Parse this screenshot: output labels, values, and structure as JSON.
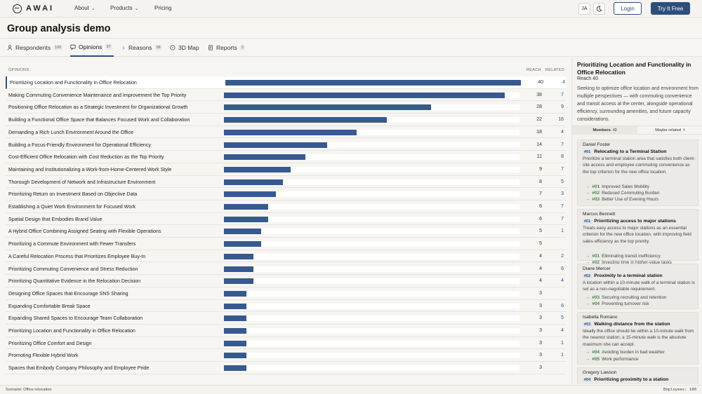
{
  "nav": {
    "brand": "AWAI",
    "about": "About",
    "products": "Products",
    "pricing": "Pricing",
    "lang": "JA",
    "login": "Login",
    "try": "Try It Free"
  },
  "page_title": "Group analysis demo",
  "tabs": [
    {
      "label": "Respondents",
      "count": "100"
    },
    {
      "label": "Opinions",
      "count": "97"
    },
    {
      "label": "Reasons",
      "count": "98"
    },
    {
      "label": "3D Map",
      "count": ""
    },
    {
      "label": "Reports",
      "count": "3"
    }
  ],
  "list_headers": {
    "opinions": "OPINIONS",
    "reach": "REACH",
    "related": "RELATED"
  },
  "opinions": [
    {
      "label": "Prioritizing Location and Functionality in Office Relocation",
      "reach": 40,
      "related": "4"
    },
    {
      "label": "Making Commuting Convenience Maintenance and Improvement the Top Priority",
      "reach": 38,
      "related": "7"
    },
    {
      "label": "Positioning Office Relocation as a Strategic Investment for Organizational Growth",
      "reach": 28,
      "related": "9"
    },
    {
      "label": "Building a Functional Office Space that Balances Focused Work and Collaboration",
      "reach": 22,
      "related": "16"
    },
    {
      "label": "Demanding a Rich Lunch Environment Around the Office",
      "reach": 18,
      "related": "4"
    },
    {
      "label": "Building a Focus-Friendly Environment for Operational Efficiency",
      "reach": 14,
      "related": "7"
    },
    {
      "label": "Cost-Efficient Office Relocation with Cost Reduction as the Top Priority",
      "reach": 11,
      "related": "8"
    },
    {
      "label": "Maintaining and Institutionalizing a Work-from-Home-Centered Work Style",
      "reach": 9,
      "related": "7"
    },
    {
      "label": "Thorough Development of Network and Infrastructure Environment",
      "reach": 8,
      "related": "5"
    },
    {
      "label": "Prioritizing Return on Investment Based on Objective Data",
      "reach": 7,
      "related": "3"
    },
    {
      "label": "Establishing a Quiet Work Environment for Focused Work",
      "reach": 6,
      "related": "7"
    },
    {
      "label": "Spatial Design that Embodies Brand Value",
      "reach": 6,
      "related": "7"
    },
    {
      "label": "A Hybrid Office Combining Assigned Seating with Flexible Operations",
      "reach": 5,
      "related": "1"
    },
    {
      "label": "Prioritizing a Commute Environment with Fewer Transfers",
      "reach": 5,
      "related": ""
    },
    {
      "label": "A Careful Relocation Process that Prioritizes Employee Buy-In",
      "reach": 4,
      "related": "2"
    },
    {
      "label": "Prioritizing Commuting Convenience and Stress Reduction",
      "reach": 4,
      "related": "6"
    },
    {
      "label": "Prioritizing Quantitative Evidence in the Relocation Decision",
      "reach": 4,
      "related": "4"
    },
    {
      "label": "Designing Office Spaces that Encourage SNS Sharing",
      "reach": 3,
      "related": ""
    },
    {
      "label": "Expanding Comfortable Break Space",
      "reach": 3,
      "related": "6"
    },
    {
      "label": "Expanding Shared Spaces to Encourage Team Collaboration",
      "reach": 3,
      "related": "5"
    },
    {
      "label": "Prioritizing Location and Functionality in Office Relocation",
      "reach": 3,
      "related": "4"
    },
    {
      "label": "Prioritizing Office Comfort and Design",
      "reach": 3,
      "related": "1"
    },
    {
      "label": "Promoting Flexible Hybrid Work",
      "reach": 3,
      "related": "1"
    },
    {
      "label": "Spaces that Embody Company Philosophy and Employee Pride",
      "reach": 3,
      "related": ""
    }
  ],
  "max_reach": 40,
  "panel": {
    "title": "Prioritizing Location and Functionality in Office Relocation",
    "reach": "Reach 40",
    "description": "Seeking to optimize office location and environment from multiple perspectives — with commuting convenience and transit access at the center, alongside operational efficiency, surrounding amenities, and future capacity considerations.",
    "tab_members": "Members",
    "tab_members_count": "43",
    "tab_related": "Maybe related",
    "tab_related_count": "4",
    "members": [
      {
        "name": "Daniel Foster",
        "tag": "#01",
        "heading": "Relocating to a Terminal Station",
        "desc": "Prioritize a terminal station area that satisfies both client-site access and employee commuting convenience as the top criterion for the new office location.",
        "subs": [
          {
            "n": "#01",
            "t": "Improved Sales Mobility"
          },
          {
            "n": "#02",
            "t": "Reduced Commuting Burden"
          },
          {
            "n": "#03",
            "t": "Better Use of Evening Hours"
          }
        ]
      },
      {
        "name": "Marcus Bennett",
        "tag": "#01",
        "heading": "Prioritizing access to major stations",
        "desc": "Treats easy access to major stations as an essential criterion for the new office location, with improving field sales efficiency as the top priority.",
        "subs": [
          {
            "n": "#01",
            "t": "Eliminating transit inefficiency"
          },
          {
            "n": "#02",
            "t": "Investing time in higher-value tasks"
          }
        ]
      },
      {
        "name": "Diane Mercer",
        "tag": "#02",
        "heading": "Proximity to a terminal station",
        "desc": "A location within a 10-minute walk of a terminal station is set as a non-negotiable requirement.",
        "subs": [
          {
            "n": "#03",
            "t": "Securing recruiting and retention"
          },
          {
            "n": "#04",
            "t": "Preventing turnover risk"
          }
        ]
      },
      {
        "name": "Isabella Romano",
        "tag": "#03",
        "heading": "Walking distance from the station",
        "desc": "Ideally the office should be within a 10-minute walk from the nearest station; a 15-minute walk is the absolute maximum she can accept.",
        "subs": [
          {
            "n": "#04",
            "t": "Avoiding burden in bad weather"
          },
          {
            "n": "#05",
            "t": "Work performance"
          }
        ]
      },
      {
        "name": "Gregory Lawson",
        "tag": "#04",
        "heading": "Prioritizing proximity to a station",
        "desc": "",
        "subs": []
      }
    ]
  },
  "footer": {
    "scenario": "Scenario: Office relocation",
    "employees": "Employees: 100"
  }
}
